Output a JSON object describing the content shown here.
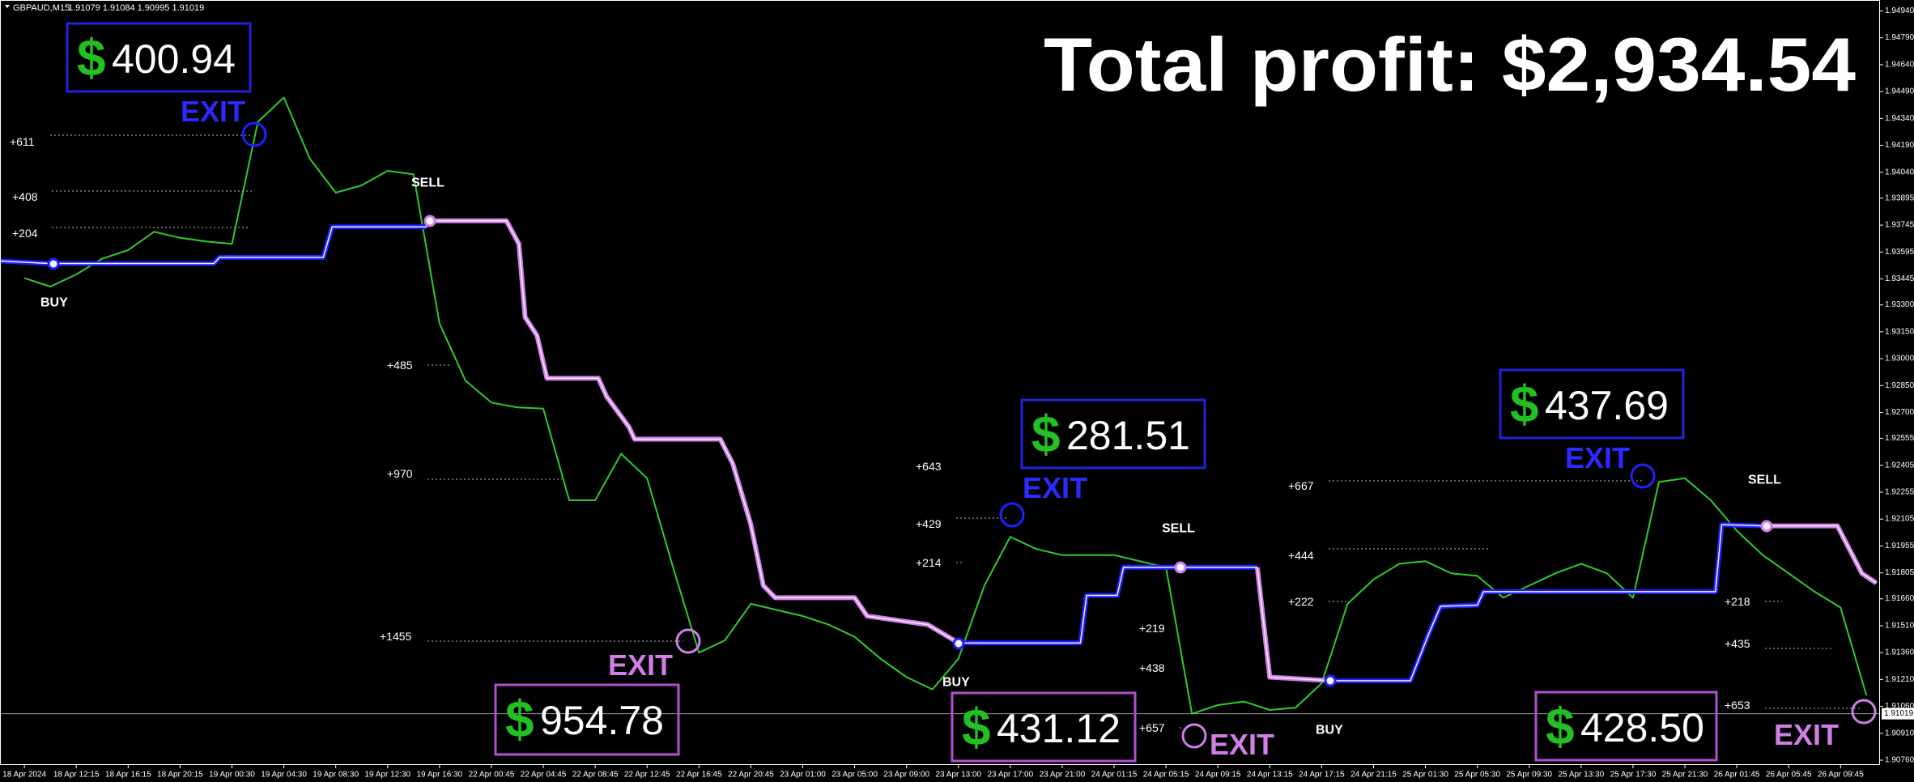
{
  "header": {
    "symbol": "GBPAUD,M15",
    "quote": "1.91079 1.91084 1.90995 1.91019"
  },
  "title": "Total profit: $2,934.54",
  "profit_boxes": [
    {
      "symbol": "$",
      "amount": "400.94"
    },
    {
      "symbol": "$",
      "amount": "281.51"
    },
    {
      "symbol": "$",
      "amount": "437.69"
    },
    {
      "symbol": "$",
      "amount": "954.78"
    },
    {
      "symbol": "$",
      "amount": "431.12"
    },
    {
      "symbol": "$",
      "amount": "428.50"
    }
  ],
  "exit_labels": [
    "EXIT",
    "EXIT",
    "EXIT",
    "EXIT",
    "EXIT",
    "EXIT"
  ],
  "signals": [
    "BUY",
    "SELL",
    "BUY",
    "SELL",
    "BUY",
    "SELL"
  ],
  "levels": [
    "+611",
    "+408",
    "+204",
    "+485",
    "+970",
    "+1455",
    "+643",
    "+429",
    "+214",
    "+219",
    "+438",
    "+657",
    "+667",
    "+444",
    "+222",
    "+218",
    "+435",
    "+653"
  ],
  "chart_data": {
    "type": "line",
    "xlim": [
      -0.47,
      35.76
    ],
    "ylim": [
      1.90733,
      1.95001
    ],
    "categories": [
      "18 Apr 2024",
      "18 Apr 12:15",
      "18 Apr 16:15",
      "18 Apr 20:15",
      "19 Apr 00:30",
      "19 Apr 04:30",
      "19 Apr 08:30",
      "19 Apr 12:30",
      "19 Apr 16:30",
      "22 Apr 00:45",
      "22 Apr 04:45",
      "22 Apr 08:45",
      "22 Apr 12:45",
      "22 Apr 16:45",
      "22 Apr 20:45",
      "23 Apr 01:00",
      "23 Apr 05:00",
      "23 Apr 09:00",
      "23 Apr 13:00",
      "23 Apr 17:00",
      "23 Apr 21:00",
      "24 Apr 01:15",
      "24 Apr 05:15",
      "24 Apr 09:15",
      "24 Apr 13:15",
      "24 Apr 17:15",
      "24 Apr 21:15",
      "25 Apr 01:30",
      "25 Apr 05:30",
      "25 Apr 09:30",
      "25 Apr 13:30",
      "25 Apr 17:30",
      "25 Apr 21:30",
      "26 Apr 01:45",
      "26 Apr 05:45",
      "26 Apr 09:45"
    ],
    "yticks": [
      {
        "value": 1.9494,
        "label": "1.94940"
      },
      {
        "value": 1.9479,
        "label": "1.94790"
      },
      {
        "value": 1.9464,
        "label": "1.94640"
      },
      {
        "value": 1.9449,
        "label": "1.94490"
      },
      {
        "value": 1.9434,
        "label": "1.94340"
      },
      {
        "value": 1.9419,
        "label": "1.94190"
      },
      {
        "value": 1.9404,
        "label": "1.94040"
      },
      {
        "value": 1.93895,
        "label": "1.93895"
      },
      {
        "value": 1.93745,
        "label": "1.93745"
      },
      {
        "value": 1.93595,
        "label": "1.93595"
      },
      {
        "value": 1.93445,
        "label": "1.93445"
      },
      {
        "value": 1.933,
        "label": "1.93300"
      },
      {
        "value": 1.9315,
        "label": "1.93150"
      },
      {
        "value": 1.93,
        "label": "1.93000"
      },
      {
        "value": 1.9285,
        "label": "1.92850"
      },
      {
        "value": 1.927,
        "label": "1.92700"
      },
      {
        "value": 1.92555,
        "label": "1.92555"
      },
      {
        "value": 1.92405,
        "label": "1.92405"
      },
      {
        "value": 1.92255,
        "label": "1.92255"
      },
      {
        "value": 1.92105,
        "label": "1.92105"
      },
      {
        "value": 1.91955,
        "label": "1.91955"
      },
      {
        "value": 1.91805,
        "label": "1.91805"
      },
      {
        "value": 1.9166,
        "label": "1.91660"
      },
      {
        "value": 1.9151,
        "label": "1.91510"
      },
      {
        "value": 1.9136,
        "label": "1.91360"
      },
      {
        "value": 1.9121,
        "label": "1.91210"
      },
      {
        "value": 1.9106,
        "label": "1.91060"
      },
      {
        "value": 1.9091,
        "label": "1.90910"
      },
      {
        "value": 1.9076,
        "label": "1.90760"
      }
    ],
    "price_line": {
      "value": 1.91019,
      "label": "1.91019"
    },
    "series": [
      {
        "role": "price",
        "color": "#2ecc2e",
        "x": [
          0,
          0.5,
          1,
          1.5,
          2,
          2.5,
          3,
          3.5,
          4,
          4.5,
          5,
          5.5,
          6,
          6.5,
          7,
          7.5,
          8,
          8.5,
          9,
          9.5,
          10,
          10.5,
          11,
          11.5,
          12,
          12.5,
          13,
          13.5,
          14,
          14.5,
          15,
          15.5,
          16,
          16.5,
          17,
          17.5,
          18,
          18.5,
          19,
          19.5,
          20,
          20.5,
          21,
          21.5,
          22,
          22.5,
          23,
          23.5,
          24,
          24.5,
          25,
          25.5,
          26,
          26.5,
          27,
          27.5,
          28,
          28.5,
          29,
          29.5,
          30,
          30.5,
          31,
          31.5,
          32,
          32.5,
          33,
          33.5,
          34,
          34.5,
          35,
          35.5
        ],
        "values": [
          1.93449,
          1.93402,
          1.9347,
          1.93558,
          1.93606,
          1.93708,
          1.93674,
          1.93654,
          1.9364,
          1.94321,
          1.94457,
          1.94116,
          1.93926,
          1.93967,
          1.94048,
          1.94028,
          1.93197,
          1.92878,
          1.92755,
          1.92728,
          1.92721,
          1.9221,
          1.9221,
          1.92469,
          1.92333,
          1.91836,
          1.9136,
          1.91428,
          1.91632,
          1.91598,
          1.91564,
          1.91516,
          1.91448,
          1.91326,
          1.91223,
          1.91155,
          1.91326,
          1.91734,
          1.92006,
          1.91938,
          1.91904,
          1.91904,
          1.91904,
          1.9187,
          1.91836,
          1.91019,
          1.91067,
          1.91087,
          1.9104,
          1.91053,
          1.91189,
          1.91632,
          1.91768,
          1.91856,
          1.9187,
          1.91802,
          1.91788,
          1.91666,
          1.91734,
          1.91802,
          1.91856,
          1.91802,
          1.91666,
          1.92312,
          1.92333,
          1.9221,
          1.9204,
          1.91904,
          1.91802,
          1.917,
          1.91611,
          1.91121
        ]
      },
      {
        "role": "stop",
        "color": "#1f1fff",
        "x": [
          -0.47,
          0.47,
          3.65,
          3.76,
          5.76,
          5.93,
          7.76
        ],
        "values": [
          1.93545,
          1.93531,
          1.93531,
          1.93565,
          1.93565,
          1.93735,
          1.93735
        ]
      },
      {
        "role": "stop",
        "color": "#cf7fe6",
        "x": [
          7.76,
          9.29,
          9.53,
          9.65,
          9.88,
          10.07,
          11.06,
          11.22,
          11.65,
          11.76,
          13.41,
          13.65,
          14.0,
          14.24,
          14.47,
          16.0,
          16.24,
          17.41,
          18.0
        ],
        "values": [
          1.93769,
          1.93769,
          1.9364,
          1.93231,
          1.93129,
          1.92891,
          1.92891,
          1.92789,
          1.92619,
          1.92551,
          1.92551,
          1.92415,
          1.92074,
          1.91734,
          1.91666,
          1.91666,
          1.91564,
          1.91516,
          1.91414
        ]
      },
      {
        "role": "stop",
        "color": "#1f1fff",
        "x": [
          18.0,
          20.35,
          20.47,
          21.06,
          21.18,
          23.76
        ],
        "values": [
          1.91414,
          1.91414,
          1.91679,
          1.91679,
          1.91836,
          1.91836
        ]
      },
      {
        "role": "stop",
        "color": "#cf7fe6",
        "x": [
          23.76,
          24.0,
          25.18
        ],
        "values": [
          1.91836,
          1.91223,
          1.91203
        ]
      },
      {
        "role": "stop",
        "color": "#1f1fff",
        "x": [
          25.18,
          26.71,
          27.06,
          27.29,
          28.0,
          28.12,
          32.59,
          32.71,
          33.53
        ],
        "values": [
          1.91203,
          1.91203,
          1.91462,
          1.91618,
          1.91625,
          1.917,
          1.917,
          1.92074,
          1.92067
        ]
      },
      {
        "role": "stop",
        "color": "#cf7fe6",
        "x": [
          33.53,
          34.94,
          35.41,
          35.69
        ],
        "values": [
          1.92067,
          1.92067,
          1.91802,
          1.91748
        ]
      }
    ]
  }
}
